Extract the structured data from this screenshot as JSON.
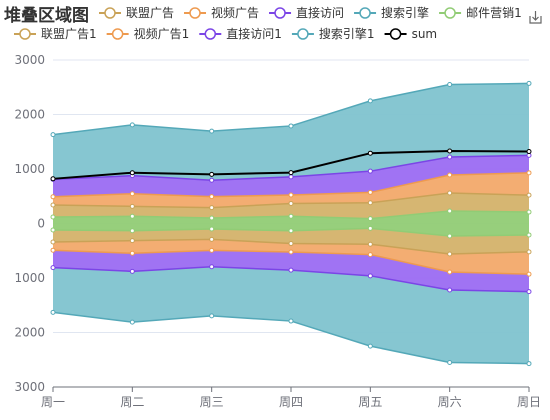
{
  "chart_data": {
    "type": "area",
    "title": "堆叠区域图",
    "categories": [
      "周一",
      "周二",
      "周三",
      "周四",
      "周五",
      "周六",
      "周日"
    ],
    "ylim": [
      -3000,
      3000
    ],
    "yticks": [
      3000,
      2000,
      1000,
      0,
      1000,
      2000,
      3000
    ],
    "grid": true,
    "legend_position": "top",
    "series": [
      {
        "name": "邮件营销",
        "color": "#91cc75",
        "values": [
          120,
          132,
          101,
          134,
          90,
          230,
          210
        ]
      },
      {
        "name": "联盟广告",
        "color": "#d4b26a",
        "values": [
          220,
          182,
          191,
          234,
          290,
          330,
          310
        ]
      },
      {
        "name": "视频广告",
        "color": "#f2a96a",
        "values": [
          150,
          232,
          201,
          154,
          190,
          330,
          410
        ]
      },
      {
        "name": "直接访问",
        "color": "#9b6bf2",
        "values": [
          320,
          332,
          301,
          334,
          390,
          330,
          320
        ]
      },
      {
        "name": "搜索引擎",
        "color": "#7fc3cf",
        "values": [
          820,
          932,
          901,
          934,
          1290,
          1330,
          1320
        ]
      },
      {
        "name": "邮件营销1",
        "color": "#91cc75",
        "values": [
          -120,
          -132,
          -101,
          -134,
          -90,
          -230,
          -210
        ]
      },
      {
        "name": "联盟广告1",
        "color": "#d4b26a",
        "values": [
          -220,
          -182,
          -191,
          -234,
          -290,
          -330,
          -310
        ]
      },
      {
        "name": "视频广告1",
        "color": "#f2a96a",
        "values": [
          -150,
          -232,
          -201,
          -154,
          -190,
          -330,
          -410
        ]
      },
      {
        "name": "直接访问1",
        "color": "#9b6bf2",
        "values": [
          -320,
          -332,
          -301,
          -334,
          -390,
          -330,
          -320
        ]
      },
      {
        "name": "搜索引擎1",
        "color": "#7fc3cf",
        "values": [
          -820,
          -932,
          -901,
          -934,
          -1290,
          -1330,
          -1320
        ]
      },
      {
        "name": "sum",
        "color": "#000000",
        "values": [
          820,
          932,
          901,
          934,
          1290,
          1330,
          1320
        ]
      }
    ],
    "legend_row1": [
      "联盟广告",
      "视频广告",
      "直接访问",
      "搜索引擎",
      "邮件营销1"
    ],
    "legend_row2": [
      "联盟广告1",
      "视频广告1",
      "直接访问1",
      "搜索引擎1",
      "sum"
    ],
    "line_colors": {
      "邮件营销": "#91cc75",
      "联盟广告": "#c9a257",
      "视频广告": "#ee9a4f",
      "直接访问": "#7b45e6",
      "搜索引擎": "#54a8b8",
      "邮件营销1": "#91cc75",
      "联盟广告1": "#c9a257",
      "视频广告1": "#ee9a4f",
      "直接访问1": "#7b45e6",
      "搜索引擎1": "#54a8b8",
      "sum": "#000000"
    }
  },
  "toolbox": {
    "icon": "save-as-image-icon"
  }
}
